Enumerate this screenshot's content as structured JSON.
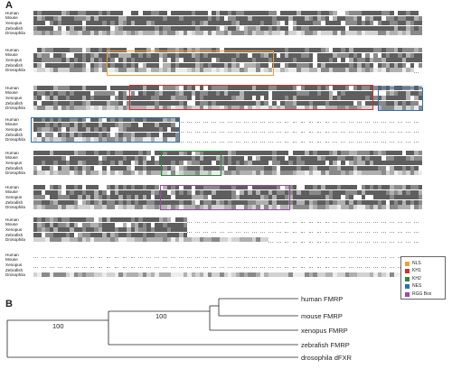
{
  "panel_a": {
    "letter": "A",
    "blocks": [
      {
        "species": [
          "Human",
          "Mouse",
          "Xenopus",
          "Zebrafish",
          "Drosophila"
        ],
        "cols": 96
      },
      {
        "species": [
          "Human",
          "Mouse",
          "Xenopus",
          "Zebrafish",
          "Drosophila"
        ],
        "cols": 96
      },
      {
        "species": [
          "Human",
          "Mouse",
          "Xenopus",
          "Zebrafish",
          "Drosophila"
        ],
        "cols": 96
      },
      {
        "species": [
          "Human",
          "Mouse",
          "Xenopus",
          "Zebrafish",
          "Drosophila"
        ],
        "cols": 96
      },
      {
        "species": [
          "Human",
          "Mouse",
          "Xenopus",
          "Zebrafish",
          "Drosophila"
        ],
        "cols": 96
      },
      {
        "species": [
          "Human",
          "Mouse",
          "Xenopus",
          "Zebrafish",
          "Drosophila"
        ],
        "cols": 96
      },
      {
        "species": [
          "Human",
          "Mouse",
          "Xenopus",
          "Zebrafish",
          "Drosophila"
        ],
        "cols": 96
      },
      {
        "species": [
          "Human",
          "Mouse",
          "Xenopus",
          "Zebrafish",
          "Drosophila"
        ],
        "cols": 96
      }
    ],
    "legend": [
      {
        "label": "NLS",
        "color": "#f0a030"
      },
      {
        "label": "KH1",
        "color": "#d03030"
      },
      {
        "label": "KH2",
        "color": "#2a8a3a"
      },
      {
        "label": "NES",
        "color": "#2a70b8"
      },
      {
        "label": "RGG Box",
        "color": "#9a4aa8"
      }
    ],
    "shade_colors": [
      "#5e5e5e",
      "#8a8a8a",
      "#b0b0b0",
      "#d2d2d2",
      "#ececec",
      "#ffffff"
    ]
  },
  "panel_b": {
    "letter": "B",
    "taxa": [
      "human FMRP",
      "mouse FMRP",
      "xenopus FMRP",
      "zebrafish FMRP",
      "drosophila dFXR"
    ],
    "support_values": [
      "100",
      "100"
    ]
  }
}
